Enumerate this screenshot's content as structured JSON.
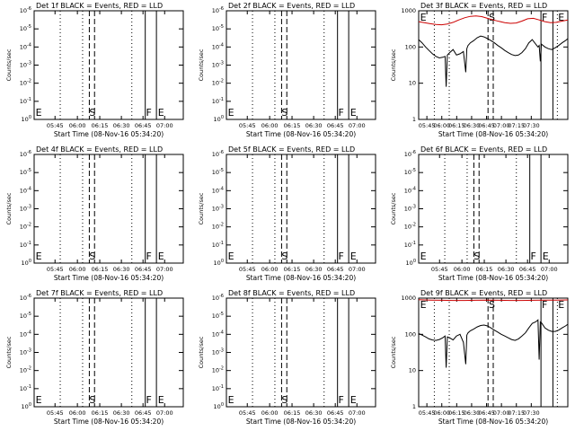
{
  "chart_data": [
    {
      "type": "line",
      "title": "Det 1f BLACK = Events, RED = LLD",
      "ylabel": "Counts/sec",
      "xlabel": "Start Time (08-Nov-16 05:34:20)",
      "scale": "log",
      "ylim": [
        1,
        1e-06
      ],
      "y_ticks": [
        "10^-6",
        "10^-5",
        "10^-4",
        "10^-3",
        "10^-2",
        "10^-1",
        "10^0"
      ],
      "x_ticks": [
        "05:45",
        "06:00",
        "06:15",
        "06:30",
        "06:45",
        "07:00"
      ],
      "markers": [
        "E",
        "S",
        "F",
        "E"
      ],
      "series": []
    },
    {
      "type": "line",
      "title": "Det 2f BLACK = Events, RED = LLD",
      "ylabel": "Counts/sec",
      "xlabel": "Start Time (08-Nov-16 05:34:20)",
      "scale": "log",
      "ylim": [
        1,
        1e-06
      ],
      "y_ticks": [
        "10^-6",
        "10^-5",
        "10^-4",
        "10^-3",
        "10^-2",
        "10^-1",
        "10^0"
      ],
      "x_ticks": [
        "05:45",
        "06:00",
        "06:15",
        "06:30",
        "06:45",
        "07:00"
      ],
      "markers": [
        "E",
        "S",
        "F",
        "E"
      ],
      "series": []
    },
    {
      "type": "line",
      "title": "Det 3f BLACK = Events, RED = LLD",
      "ylabel": "Counts/sec",
      "xlabel": "Start Time (08-Nov-16 05:34:20)",
      "scale": "log",
      "ylim": [
        1,
        1000
      ],
      "y_ticks": [
        "1",
        "10",
        "100",
        "1000"
      ],
      "x_ticks": [
        "05:45",
        "06:00",
        "06:15",
        "06:30",
        "06:45",
        "07:00",
        "07:15",
        "07:30"
      ],
      "markers": [
        "E",
        "S",
        "F",
        "E"
      ],
      "series": [
        {
          "color": "#cc0000",
          "x": [
            0,
            5,
            10,
            15,
            20,
            25,
            30,
            35,
            40,
            45,
            50,
            55,
            60,
            65,
            70,
            75,
            80,
            85,
            90,
            95,
            100,
            105,
            110,
            115,
            120,
            125,
            130
          ],
          "y": [
            500,
            470,
            440,
            420,
            410,
            430,
            480,
            560,
            640,
            700,
            720,
            690,
            620,
            560,
            510,
            470,
            450,
            460,
            520,
            600,
            620,
            560,
            500,
            470,
            480,
            520,
            560
          ]
        },
        {
          "color": "#000000",
          "x": [
            0,
            3,
            6,
            9,
            12,
            15,
            18,
            21,
            23,
            24,
            25,
            27,
            30,
            33,
            36,
            39,
            41,
            42,
            43,
            45,
            48,
            51,
            54,
            57,
            60,
            63,
            66,
            69,
            72,
            75,
            78,
            81,
            84,
            87,
            90,
            93,
            96,
            99,
            102,
            104,
            105,
            106,
            107,
            110,
            113,
            116,
            119,
            122,
            125,
            128,
            130
          ],
          "y": [
            160,
            130,
            100,
            80,
            65,
            55,
            50,
            52,
            55,
            8,
            60,
            70,
            85,
            60,
            65,
            75,
            20,
            90,
            110,
            130,
            150,
            180,
            200,
            190,
            170,
            150,
            130,
            110,
            95,
            80,
            70,
            62,
            58,
            60,
            70,
            90,
            130,
            160,
            120,
            100,
            110,
            40,
            120,
            100,
            90,
            85,
            95,
            110,
            130,
            150,
            170
          ]
        }
      ]
    },
    {
      "type": "line",
      "title": "Det 4f BLACK = Events, RED = LLD",
      "ylabel": "Counts/sec",
      "xlabel": "Start Time (08-Nov-16 05:34:20)",
      "scale": "log",
      "ylim": [
        1,
        1e-06
      ],
      "y_ticks": [
        "10^-6",
        "10^-5",
        "10^-4",
        "10^-3",
        "10^-2",
        "10^-1",
        "10^0"
      ],
      "x_ticks": [
        "05:45",
        "06:00",
        "06:15",
        "06:30",
        "06:45",
        "07:00"
      ],
      "markers": [
        "E",
        "S",
        "F",
        "E"
      ],
      "series": []
    },
    {
      "type": "line",
      "title": "Det 5f BLACK = Events, RED = LLD",
      "ylabel": "Counts/sec",
      "xlabel": "Start Time (08-Nov-16 05:34:20)",
      "scale": "log",
      "ylim": [
        1,
        1e-06
      ],
      "y_ticks": [
        "10^-6",
        "10^-5",
        "10^-4",
        "10^-3",
        "10^-2",
        "10^-1",
        "10^0"
      ],
      "x_ticks": [
        "05:45",
        "06:00",
        "06:15",
        "06:30",
        "06:45",
        "07:00"
      ],
      "markers": [
        "E",
        "S",
        "F",
        "E"
      ],
      "series": []
    },
    {
      "type": "line",
      "title": "Det 6f BLACK = Events, RED = LLD",
      "ylabel": "Counts/sec",
      "xlabel": "Start Time (08-Nov-16 05:34:20)",
      "scale": "log",
      "ylim": [
        1,
        1e-06
      ],
      "y_ticks": [
        "10^-6",
        "10^-5",
        "10^-4",
        "10^-3",
        "10^-2",
        "10^-1",
        "10^0"
      ],
      "x_ticks": [
        "05:45",
        "06:00",
        "06:15",
        "06:30",
        "06:45",
        "07:00"
      ],
      "markers": [
        "E",
        "S",
        "F",
        "E"
      ],
      "series": []
    },
    {
      "type": "line",
      "title": "Det 7f BLACK = Events, RED = LLD",
      "ylabel": "Counts/sec",
      "xlabel": "Start Time (08-Nov-16 05:34:20)",
      "scale": "log",
      "ylim": [
        1,
        1e-06
      ],
      "y_ticks": [
        "10^-6",
        "10^-5",
        "10^-4",
        "10^-3",
        "10^-2",
        "10^-1",
        "10^0"
      ],
      "x_ticks": [
        "05:45",
        "06:00",
        "06:15",
        "06:30",
        "06:45",
        "07:00"
      ],
      "markers": [
        "E",
        "S",
        "F",
        "E"
      ],
      "series": []
    },
    {
      "type": "line",
      "title": "Det 8f BLACK = Events, RED = LLD",
      "ylabel": "Counts/sec",
      "xlabel": "Start Time (08-Nov-16 05:34:20)",
      "scale": "log",
      "ylim": [
        1,
        1e-06
      ],
      "y_ticks": [
        "10^-6",
        "10^-5",
        "10^-4",
        "10^-3",
        "10^-2",
        "10^-1",
        "10^0"
      ],
      "x_ticks": [
        "05:45",
        "06:00",
        "06:15",
        "06:30",
        "06:45",
        "07:00"
      ],
      "markers": [
        "E",
        "S",
        "F",
        "E"
      ],
      "series": []
    },
    {
      "type": "line",
      "title": "Det 9f BLACK = Events, RED = LLD",
      "ylabel": "Counts/sec",
      "xlabel": "Start Time (08-Nov-16 05:34:20)",
      "scale": "log",
      "ylim": [
        1,
        1000
      ],
      "y_ticks": [
        "1",
        "10",
        "100",
        "1000"
      ],
      "x_ticks": [
        "05:45",
        "06:00",
        "06:15",
        "06:30",
        "06:45",
        "07:00",
        "07:15",
        "07:30"
      ],
      "markers": [
        "E",
        "S",
        "F",
        "E"
      ],
      "series": [
        {
          "color": "#cc0000",
          "x": [
            0,
            10,
            20,
            30,
            40,
            50,
            60,
            70,
            80,
            90,
            100,
            110,
            120,
            130
          ],
          "y": [
            900,
            880,
            870,
            860,
            860,
            870,
            880,
            870,
            860,
            860,
            870,
            880,
            880,
            890
          ]
        },
        {
          "color": "#000000",
          "x": [
            0,
            3,
            6,
            9,
            12,
            15,
            18,
            21,
            23,
            24,
            25,
            27,
            30,
            33,
            36,
            39,
            41,
            42,
            43,
            45,
            48,
            51,
            54,
            57,
            60,
            63,
            66,
            69,
            72,
            75,
            78,
            81,
            84,
            87,
            90,
            93,
            96,
            99,
            102,
            104,
            105,
            106,
            107,
            110,
            113,
            116,
            119,
            122,
            125,
            128,
            130
          ],
          "y": [
            105,
            95,
            85,
            75,
            70,
            68,
            72,
            80,
            90,
            12,
            85,
            80,
            70,
            90,
            100,
            60,
            15,
            95,
            110,
            125,
            140,
            160,
            175,
            180,
            170,
            150,
            130,
            115,
            100,
            90,
            80,
            72,
            68,
            75,
            90,
            110,
            150,
            200,
            220,
            250,
            20,
            220,
            210,
            150,
            130,
            120,
            120,
            130,
            150,
            170,
            190
          ]
        }
      ]
    }
  ]
}
